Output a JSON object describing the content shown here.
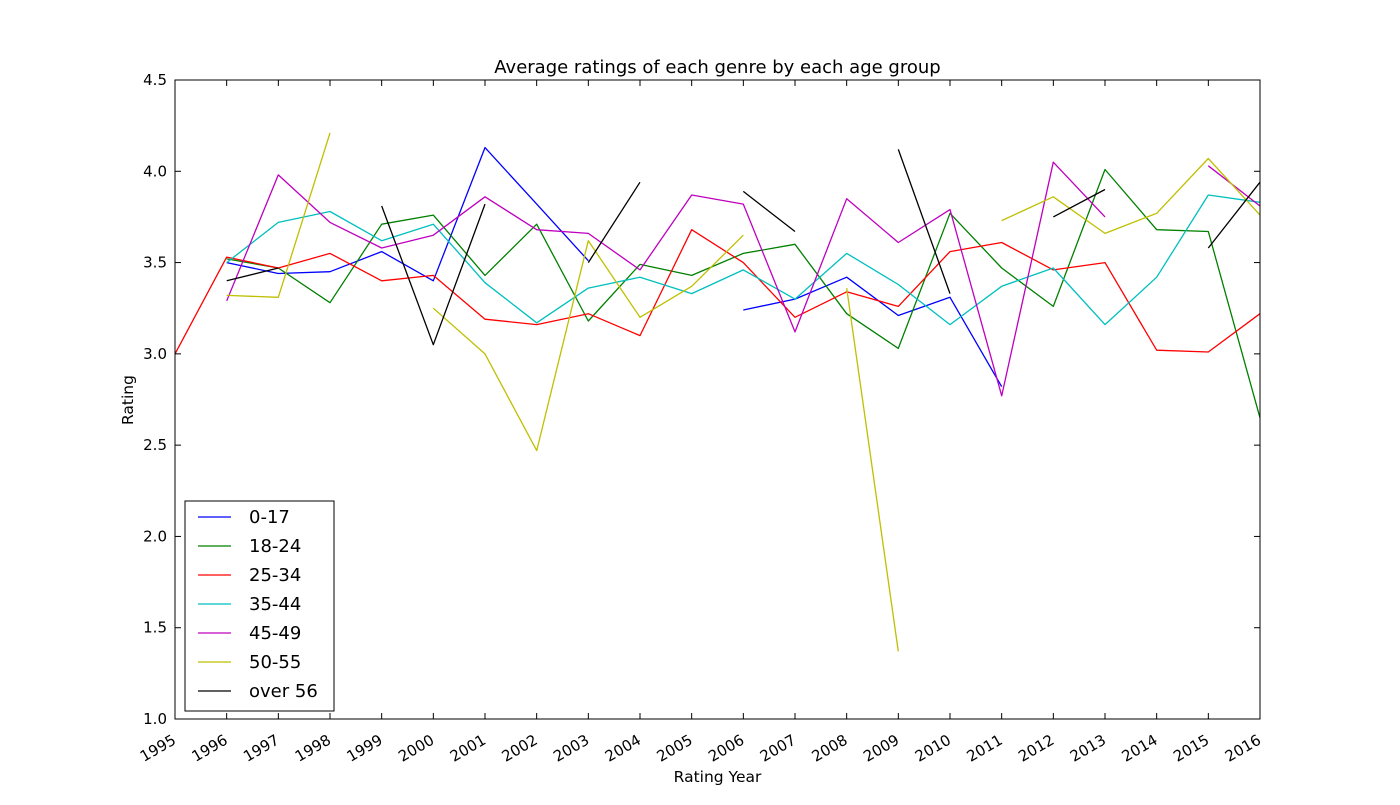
{
  "chart_data": {
    "type": "line",
    "title": "Average ratings of each genre by each age group",
    "xlabel": "Rating Year",
    "ylabel": "Rating",
    "xlim": [
      1995,
      2016
    ],
    "ylim": [
      1.0,
      4.5
    ],
    "yticks": [
      "1.0",
      "1.5",
      "2.0",
      "2.5",
      "3.0",
      "3.5",
      "4.0",
      "4.5"
    ],
    "categories": [
      "1995",
      "1996",
      "1997",
      "1998",
      "1999",
      "2000",
      "2001",
      "2002",
      "2003",
      "2004",
      "2005",
      "2006",
      "2007",
      "2008",
      "2009",
      "2010",
      "2011",
      "2012",
      "2013",
      "2014",
      "2015",
      "2016"
    ],
    "legend_position": "lower-left",
    "series": [
      {
        "name": "0-17",
        "color": "#0000ff",
        "values": [
          null,
          3.5,
          3.44,
          3.45,
          3.56,
          3.4,
          4.13,
          3.82,
          3.51,
          null,
          null,
          3.24,
          3.3,
          3.42,
          3.21,
          3.31,
          2.82,
          null,
          null,
          null,
          null,
          null
        ]
      },
      {
        "name": "18-24",
        "color": "#008000",
        "values": [
          null,
          3.52,
          3.47,
          3.28,
          3.71,
          3.76,
          3.43,
          3.71,
          3.18,
          3.49,
          3.43,
          3.55,
          3.6,
          3.22,
          3.03,
          3.77,
          3.47,
          3.26,
          4.01,
          3.68,
          3.67,
          2.65
        ]
      },
      {
        "name": "25-34",
        "color": "#ff0000",
        "values": [
          3.0,
          3.53,
          3.47,
          3.55,
          3.4,
          3.43,
          3.19,
          3.16,
          3.22,
          3.1,
          3.68,
          3.5,
          3.2,
          3.34,
          3.26,
          3.56,
          3.61,
          3.46,
          3.5,
          3.02,
          3.01,
          3.22
        ]
      },
      {
        "name": "35-44",
        "color": "#00bfbf",
        "values": [
          null,
          3.5,
          3.72,
          3.78,
          3.62,
          3.71,
          3.39,
          3.17,
          3.36,
          3.42,
          3.33,
          3.46,
          3.3,
          3.55,
          3.38,
          3.16,
          3.37,
          3.47,
          3.16,
          3.42,
          3.87,
          3.83
        ]
      },
      {
        "name": "45-49",
        "color": "#bf00bf",
        "values": [
          null,
          3.29,
          3.98,
          3.72,
          3.58,
          3.65,
          3.86,
          3.68,
          3.66,
          3.46,
          3.87,
          3.82,
          3.12,
          3.85,
          3.61,
          3.79,
          2.77,
          4.05,
          3.75,
          null,
          4.03,
          3.81
        ]
      },
      {
        "name": "50-55",
        "color": "#bfbf00",
        "values": [
          null,
          3.32,
          3.31,
          4.21,
          null,
          3.25,
          3.0,
          2.47,
          3.62,
          3.2,
          3.37,
          3.65,
          null,
          3.36,
          1.37,
          null,
          3.73,
          3.86,
          3.66,
          3.77,
          4.07,
          3.76
        ]
      },
      {
        "name": "over 56",
        "color": "#000000",
        "values": [
          null,
          3.4,
          3.47,
          null,
          3.81,
          3.05,
          3.82,
          null,
          3.5,
          3.94,
          null,
          3.89,
          3.67,
          null,
          4.12,
          3.33,
          null,
          3.75,
          3.9,
          null,
          3.58,
          3.94
        ]
      }
    ]
  }
}
